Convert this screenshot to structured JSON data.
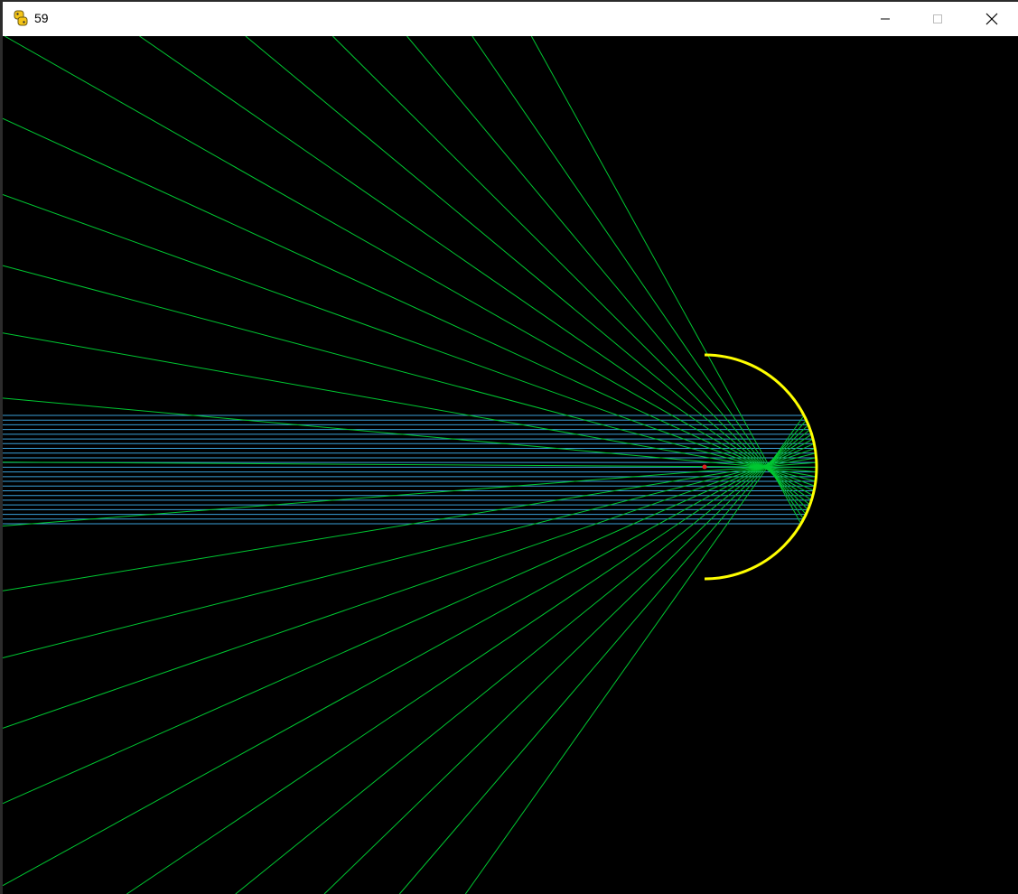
{
  "window": {
    "title": "59",
    "app_icon": "python-snake-icon",
    "controls": {
      "minimize_icon": "minimize-icon",
      "maximize_icon": "maximize-icon",
      "close_icon": "close-icon"
    }
  },
  "scene": {
    "background": "#000000",
    "mirror_color": "#ffff00",
    "incident_ray_color": "#3a9fd8",
    "reflected_ray_color": "#00c832",
    "focus_marker_color": "#e02020",
    "incident_ray_count": 24,
    "reflected_ray_count": 24
  }
}
